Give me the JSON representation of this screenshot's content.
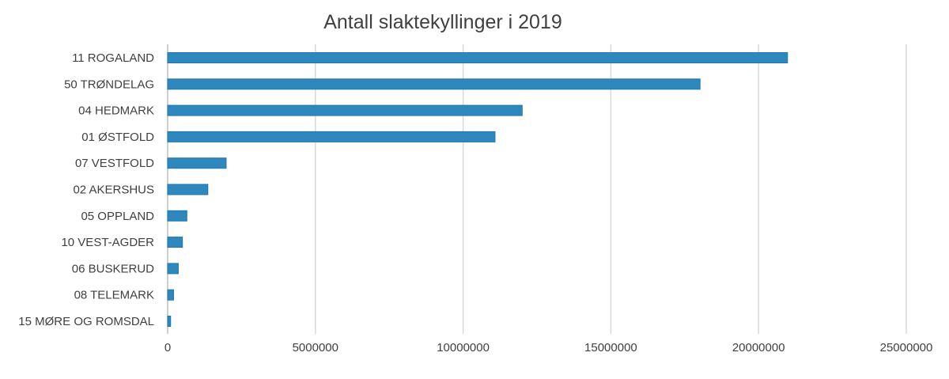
{
  "chart_data": {
    "type": "bar",
    "orientation": "horizontal",
    "title": "Antall slaktekyllinger i 2019",
    "xlabel": "",
    "ylabel": "",
    "categories": [
      "11 ROGALAND",
      "50 TRØNDELAG",
      "04 HEDMARK",
      "01 ØSTFOLD",
      "07 VESTFOLD",
      "02 AKERSHUS",
      "05 OPPLAND",
      "10 VEST-AGDER",
      "06 BUSKERUD",
      "08 TELEMARK",
      "15 MØRE OG ROMSDAL"
    ],
    "values": [
      20980000,
      18020000,
      12000000,
      11080000,
      1980000,
      1360000,
      650000,
      500000,
      360000,
      200000,
      100000
    ],
    "xlim": [
      0,
      25000000
    ],
    "xticks": [
      "0",
      "5000000",
      "10000000",
      "15000000",
      "20000000",
      "25000000"
    ],
    "grid": true,
    "legend": "none",
    "bar_color": "#2e88bd"
  }
}
